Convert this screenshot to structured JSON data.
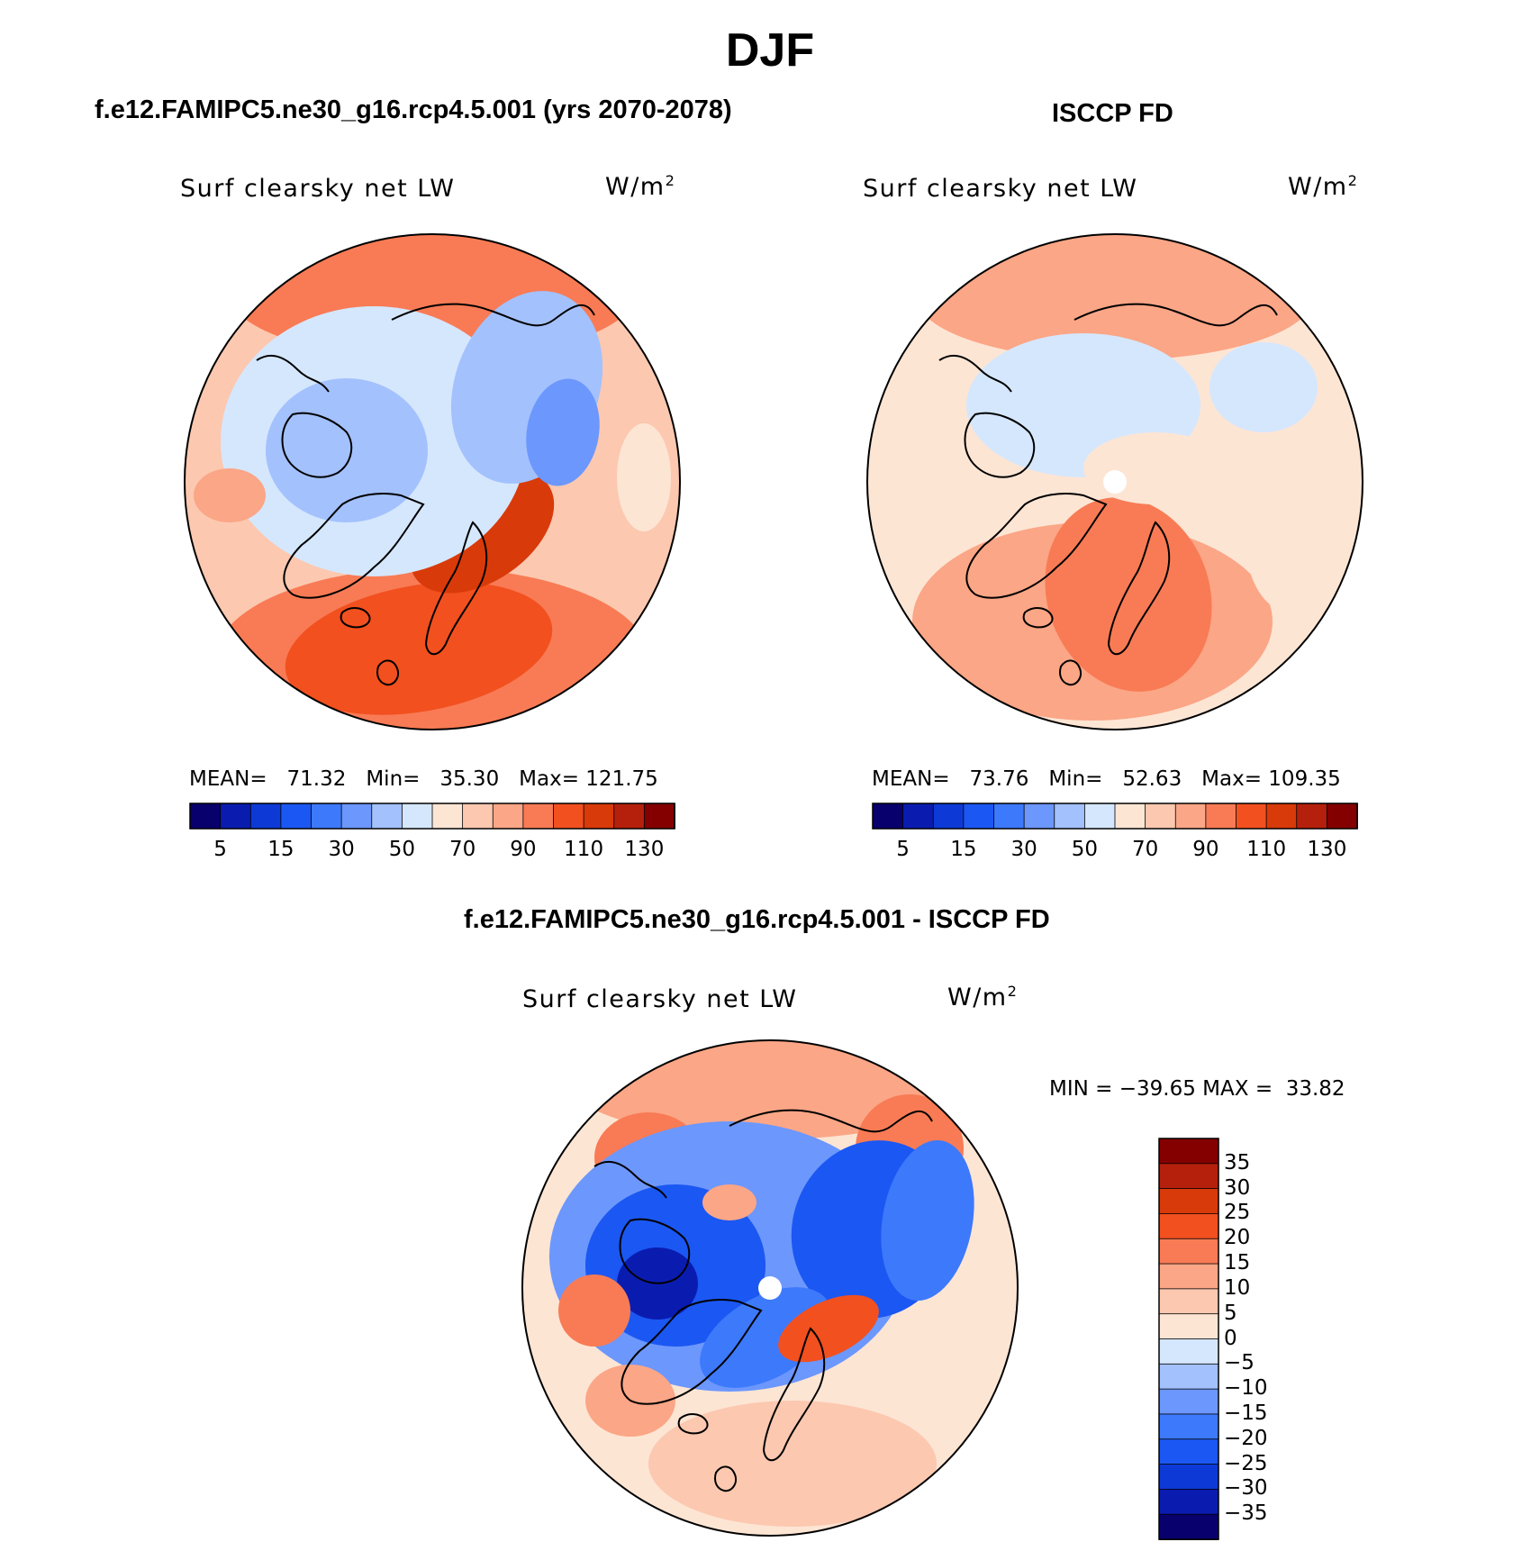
{
  "title": "DJF",
  "colors": {
    "scale16": [
      "#08006d",
      "#0a1cb0",
      "#0d3ad6",
      "#1b57f2",
      "#3d79fb",
      "#6c97fd",
      "#a3c1fd",
      "#d5e7fd",
      "#fde5d4",
      "#fcc8b0",
      "#fba686",
      "#f87b55",
      "#f2501f",
      "#d93a0a",
      "#b5200d",
      "#840000"
    ],
    "diff16": [
      "#08006d",
      "#0a1cb0",
      "#0d3ad6",
      "#1b57f2",
      "#3d79fb",
      "#6c97fd",
      "#a3c1fd",
      "#d5e7fd",
      "#fde5d4",
      "#fcc8b0",
      "#fba686",
      "#f87b55",
      "#f2501f",
      "#d93a0a",
      "#b5200d",
      "#840000"
    ]
  },
  "panels": {
    "model": {
      "title": "f.e12.FAMIPC5.ne30_g16.rcp4.5.001 (yrs 2070-2078)",
      "variable": "Surf clearsky net LW",
      "units": "W/m",
      "units_exp": "2",
      "mean_label": "MEAN=",
      "mean": "71.32",
      "min_label": "Min=",
      "min": "35.30",
      "max_label": "Max=",
      "max": "121.75"
    },
    "obs": {
      "title": "ISCCP FD",
      "variable": "Surf clearsky net LW",
      "units": "W/m",
      "units_exp": "2",
      "mean_label": "MEAN=",
      "mean": "73.76",
      "min_label": "Min=",
      "min": "52.63",
      "max_label": "Max=",
      "max": "109.35"
    },
    "diff": {
      "title": "f.e12.FAMIPC5.ne30_g16.rcp4.5.001 - ISCCP FD",
      "variable": "Surf clearsky net LW",
      "units": "W/m",
      "units_exp": "2",
      "min_label": "MIN =",
      "min": "−39.65",
      "max_label": "MAX =",
      "max": "33.82"
    }
  },
  "chart_data": [
    {
      "type": "heatmap",
      "projection": "north-polar-stereographic",
      "title": "Surf clearsky net LW",
      "units": "W/m2",
      "colorbar_orientation": "horizontal",
      "colorbar_ticks": [
        "5",
        "15",
        "30",
        "50",
        "70",
        "90",
        "110",
        "130"
      ],
      "levels": [
        5,
        10,
        15,
        20,
        30,
        40,
        50,
        60,
        70,
        80,
        90,
        100,
        110,
        120,
        130
      ],
      "mean": 71.32,
      "min": 35.3,
      "max": 121.75
    },
    {
      "type": "heatmap",
      "projection": "north-polar-stereographic",
      "title": "Surf clearsky net LW",
      "units": "W/m2",
      "colorbar_orientation": "horizontal",
      "colorbar_ticks": [
        "5",
        "15",
        "30",
        "50",
        "70",
        "90",
        "110",
        "130"
      ],
      "levels": [
        5,
        10,
        15,
        20,
        30,
        40,
        50,
        60,
        70,
        80,
        90,
        100,
        110,
        120,
        130
      ],
      "mean": 73.76,
      "min": 52.63,
      "max": 109.35
    },
    {
      "type": "heatmap",
      "projection": "north-polar-stereographic",
      "title": "Surf clearsky net LW",
      "units": "W/m2",
      "colorbar_orientation": "vertical",
      "colorbar_ticks": [
        "35",
        "30",
        "25",
        "20",
        "15",
        "10",
        "5",
        "0",
        "−5",
        "−10",
        "−15",
        "−20",
        "−25",
        "−30",
        "−35"
      ],
      "levels": [
        -35,
        -30,
        -25,
        -20,
        -15,
        -10,
        -5,
        0,
        5,
        10,
        15,
        20,
        25,
        30,
        35
      ],
      "min": -39.65,
      "max": 33.82
    }
  ]
}
